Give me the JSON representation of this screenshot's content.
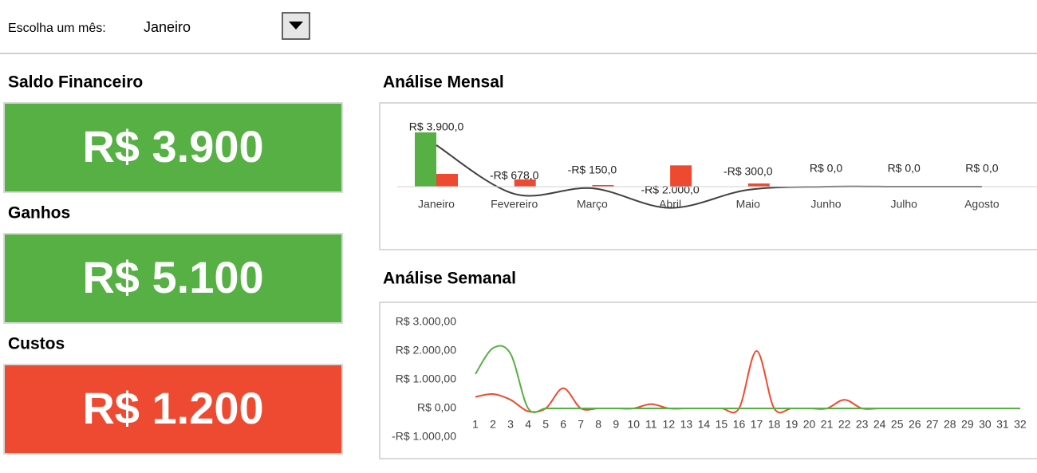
{
  "header": {
    "label": "Escolha um mês:",
    "selected": "Janeiro"
  },
  "cards": [
    {
      "title": "Saldo Financeiro",
      "value": "R$ 3.900"
    },
    {
      "title": "Ganhos",
      "value": "R$ 5.100"
    },
    {
      "title": "Custos",
      "value": "R$ 1.200"
    }
  ],
  "chart_data": [
    {
      "type": "bar",
      "title": "Análise Mensal",
      "categories": [
        "Janeiro",
        "Fevereiro",
        "Março",
        "Abril",
        "Maio",
        "Junho",
        "Julho",
        "Agosto"
      ],
      "series": [
        {
          "color": "#56b043",
          "values": [
            5100,
            0,
            0,
            0,
            0,
            0,
            0,
            0
          ]
        },
        {
          "color": "#ee4a31",
          "values": [
            1200,
            678,
            150,
            2000,
            300,
            0,
            0,
            0
          ]
        },
        {
          "type": "line",
          "color": "#404040",
          "values": [
            3900,
            -678,
            -150,
            -2000,
            -300,
            0,
            0,
            0
          ],
          "value_labels": [
            "R$ 3.900,0",
            "-R$ 678,0",
            "-R$ 150,0",
            "-R$ 2.000,0",
            "-R$ 300,0",
            "R$ 0,0",
            "R$ 0,0",
            "R$ 0,0"
          ]
        }
      ]
    },
    {
      "type": "line",
      "title": "Análise Semanal",
      "x": [
        1,
        2,
        3,
        4,
        5,
        6,
        7,
        8,
        9,
        10,
        11,
        12,
        13,
        14,
        15,
        16,
        17,
        18,
        19,
        20,
        21,
        22,
        23,
        24,
        25,
        26,
        27,
        28,
        29,
        30,
        31,
        32
      ],
      "series": [
        {
          "color": "#56b043",
          "values": [
            1200,
            2100,
            1900,
            0,
            0,
            0,
            0,
            0,
            0,
            0,
            0,
            0,
            0,
            0,
            0,
            0,
            0,
            0,
            0,
            0,
            0,
            0,
            0,
            0,
            0,
            0,
            0,
            0,
            0,
            0,
            0,
            0
          ]
        },
        {
          "color": "#ee4a31",
          "values": [
            400,
            500,
            300,
            -100,
            0,
            700,
            0,
            0,
            0,
            0,
            150,
            0,
            0,
            0,
            0,
            0,
            2000,
            0,
            0,
            0,
            0,
            300,
            0,
            0,
            0,
            0,
            0,
            0,
            0,
            0,
            0,
            0
          ]
        }
      ],
      "ylim": [
        -1000,
        3000
      ],
      "yticks": [
        {
          "value": -1000,
          "label": "-R$ 1.000,00"
        },
        {
          "value": 0,
          "label": "R$ 0,00"
        },
        {
          "value": 1000,
          "label": "R$ 1.000,00"
        },
        {
          "value": 2000,
          "label": "R$ 2.000,00"
        },
        {
          "value": 3000,
          "label": "R$ 3.000,00"
        }
      ]
    }
  ]
}
